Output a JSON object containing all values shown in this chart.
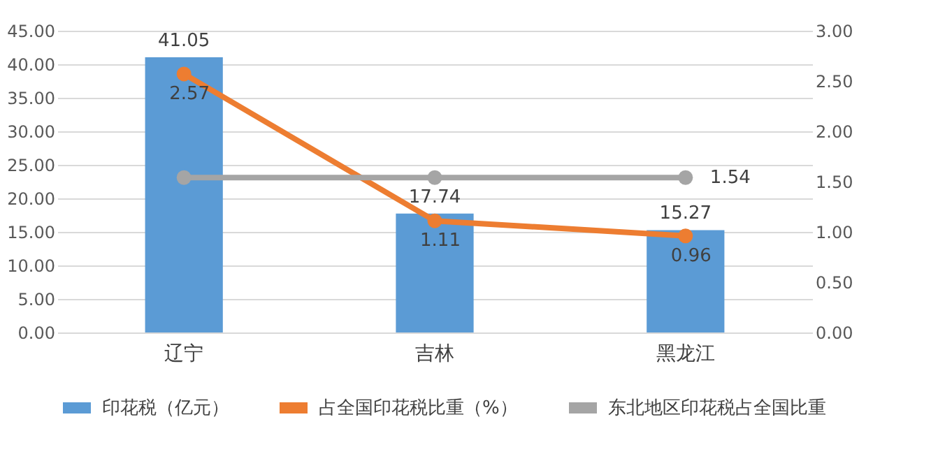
{
  "chart_data": {
    "type": "bar",
    "categories": [
      "辽宁",
      "吉林",
      "黑龙江"
    ],
    "series": [
      {
        "name": "印花税（亿元）",
        "color": "#5b9bd5",
        "values": [
          41.05,
          17.74,
          15.27
        ],
        "value_labels": [
          "41.05",
          "17.74",
          "15.27"
        ]
      },
      {
        "name": "占全国印花税比重（%）",
        "type": "line",
        "axis": "y2",
        "color": "#ed7d31",
        "values": [
          2.57,
          1.11,
          0.96
        ],
        "value_labels": [
          "2.57",
          "1.11",
          "0.96"
        ]
      },
      {
        "name": "东北地区印花税占全国比重",
        "type": "line",
        "axis": "y2",
        "color": "#a5a5a5",
        "values": [
          1.54,
          1.54,
          1.54
        ],
        "value_labels": [
          null,
          null,
          "1.54"
        ]
      }
    ],
    "ylim": [
      0,
      45
    ],
    "yticks": [
      {
        "value": 0,
        "label": "0.00"
      },
      {
        "value": 5,
        "label": "5.00"
      },
      {
        "value": 10,
        "label": "10.00"
      },
      {
        "value": 15,
        "label": "15.00"
      },
      {
        "value": 20,
        "label": "20.00"
      },
      {
        "value": 25,
        "label": "25.00"
      },
      {
        "value": 30,
        "label": "30.00"
      },
      {
        "value": 35,
        "label": "35.00"
      },
      {
        "value": 40,
        "label": "40.00"
      },
      {
        "value": 45,
        "label": "45.00"
      }
    ],
    "y2lim": [
      0,
      3
    ],
    "y2ticks": [
      {
        "value": 0,
        "label": "0.00"
      },
      {
        "value": 0.5,
        "label": "0.50"
      },
      {
        "value": 1,
        "label": "1.00"
      },
      {
        "value": 1.5,
        "label": "1.50"
      },
      {
        "value": 2,
        "label": "2.00"
      },
      {
        "value": 2.5,
        "label": "2.50"
      },
      {
        "value": 3,
        "label": "3.00"
      }
    ],
    "grid": "y",
    "legend": "bottom",
    "marker": "circle",
    "line_style": "solid"
  }
}
